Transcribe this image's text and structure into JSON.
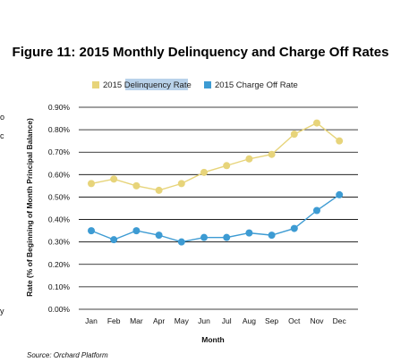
{
  "chart_data": {
    "type": "line",
    "title": "Figure 11: 2015 Monthly Delinquency and Charge Off Rates",
    "xlabel": "Month",
    "ylabel": "Rate (% of Beginning of Month Principal Balance)",
    "categories": [
      "Jan",
      "Feb",
      "Mar",
      "Apr",
      "May",
      "Jun",
      "Jul",
      "Aug",
      "Sep",
      "Oct",
      "Nov",
      "Dec"
    ],
    "ylim": [
      0,
      0.9
    ],
    "yticks": [
      "0.00%",
      "0.10%",
      "0.20%",
      "0.30%",
      "0.40%",
      "0.50%",
      "0.60%",
      "0.70%",
      "0.80%",
      "0.90%"
    ],
    "grid": "horizontal",
    "legend_position": "top",
    "series": [
      {
        "name": "2015 Delinquency Rate",
        "color": "#e7d47a",
        "values": [
          0.56,
          0.58,
          0.55,
          0.53,
          0.56,
          0.61,
          0.64,
          0.67,
          0.69,
          0.78,
          0.83,
          0.75
        ]
      },
      {
        "name": "2015 Charge Off Rate",
        "color": "#3d9bd3",
        "values": [
          0.35,
          0.31,
          0.35,
          0.33,
          0.3,
          0.32,
          0.32,
          0.34,
          0.33,
          0.36,
          0.44,
          0.51
        ]
      }
    ],
    "source": "Source: Orchard Platform"
  },
  "edge_text": [
    "o",
    "c",
    "y"
  ],
  "colors": {
    "grid": "#000000",
    "legend_highlight": "#b9d2ea"
  }
}
